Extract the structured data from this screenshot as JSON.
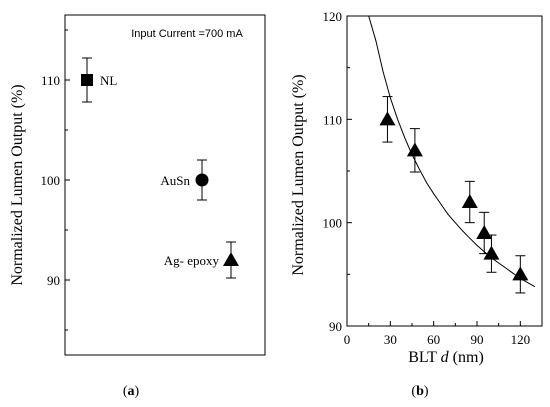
{
  "chart_data": [
    {
      "panel": "(a)",
      "panel_letter": "a",
      "type": "scatter",
      "annotation": "Input Current =700 mA",
      "ylabel": "Normalized Lumen Output (%)",
      "ylim": [
        82.5,
        116.5
      ],
      "yticks": [
        90,
        100,
        110
      ],
      "grid": false,
      "points": [
        {
          "label": "NL",
          "y": 110,
          "err": 2.2,
          "marker": "square"
        },
        {
          "label": "AuSn",
          "y": 100,
          "err": 2.0,
          "marker": "circle"
        },
        {
          "label": "Ag- epoxy",
          "y": 92,
          "err": 1.8,
          "marker": "triangle"
        }
      ]
    },
    {
      "panel": "(b)",
      "panel_letter": "b",
      "type": "scatter",
      "xlabel": "BLT",
      "xlabel_var": "d",
      "xlabel_unit": "(nm)",
      "ylabel": "Normalized Lumen Output (%)",
      "xlim": [
        0,
        135
      ],
      "ylim": [
        90,
        120
      ],
      "xticks": [
        0,
        30,
        60,
        90,
        120
      ],
      "yticks": [
        90,
        100,
        110,
        120
      ],
      "grid": false,
      "points": [
        {
          "x": 28,
          "y": 110,
          "err": 2.2
        },
        {
          "x": 47,
          "y": 107,
          "err": 2.1
        },
        {
          "x": 85,
          "y": 102,
          "err": 2.0
        },
        {
          "x": 95,
          "y": 99,
          "err": 2.0
        },
        {
          "x": 100,
          "y": 97,
          "err": 1.8
        },
        {
          "x": 120,
          "y": 95,
          "err": 1.8
        }
      ],
      "fit_curve": {
        "x": [
          15,
          20,
          25,
          30,
          35,
          40,
          45,
          50,
          55,
          60,
          65,
          70,
          75,
          80,
          85,
          90,
          95,
          100,
          105,
          110,
          115,
          120,
          125,
          130
        ],
        "y": [
          121.3,
          117.6,
          114.6,
          112.1,
          110.0,
          108.2,
          106.6,
          105.2,
          103.9,
          102.8,
          101.8,
          100.8,
          100.0,
          99.2,
          98.5,
          97.8,
          97.2,
          96.6,
          96.1,
          95.6,
          95.1,
          94.6,
          94.2,
          93.8
        ]
      }
    }
  ]
}
